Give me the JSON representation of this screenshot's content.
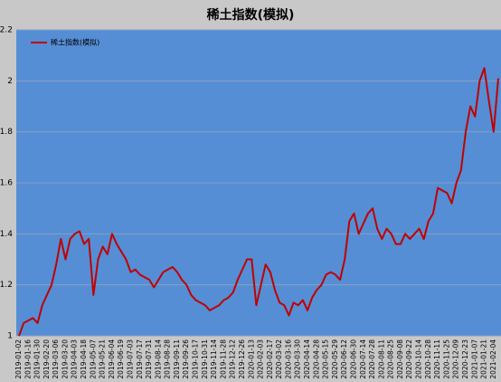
{
  "chart_data": {
    "type": "line",
    "title": "稀土指数(模拟)",
    "categories": [
      "2019-01-02",
      null,
      "2019-01-16",
      null,
      "2019-01-30",
      null,
      "2019-02-20",
      null,
      "2019-03-06",
      null,
      "2019-03-20",
      null,
      "2019-04-03",
      null,
      "2019-04-18",
      null,
      "2019-05-07",
      null,
      "2019-05-21",
      null,
      "2019-06-04",
      null,
      "2019-06-19",
      null,
      "2019-07-03",
      null,
      "2019-07-17",
      null,
      "2019-07-31",
      null,
      "2019-08-14",
      null,
      "2019-08-28",
      null,
      "2019-09-11",
      null,
      "2019-09-26",
      null,
      "2019-10-17",
      null,
      "2019-10-31",
      null,
      "2019-11-14",
      null,
      "2019-11-28",
      null,
      "2019-12-12",
      null,
      "2019-12-26",
      null,
      "2020-01-13",
      null,
      "2020-02-03",
      null,
      "2020-02-17",
      null,
      "2020-03-02",
      null,
      "2020-03-16",
      null,
      "2020-03-30",
      null,
      "2020-04-14",
      null,
      "2020-04-28",
      null,
      "2020-05-15",
      null,
      "2020-05-29",
      null,
      "2020-06-12",
      null,
      "2020-06-30",
      null,
      "2020-07-14",
      null,
      "2020-07-28",
      null,
      "2020-08-11",
      null,
      "2020-08-25",
      null,
      "2020-09-08",
      null,
      "2020-09-22",
      null,
      "2020-10-14",
      null,
      "2020-10-28",
      null,
      "2020-11-11",
      null,
      "2020-11-25",
      null,
      "2020-12-09",
      null,
      "2020-12-23",
      null,
      "2021-01-07",
      null,
      "2021-01-21",
      null,
      "2021-02-04",
      null
    ],
    "series": [
      {
        "name": "稀土指数(模拟)",
        "color": "#c00000",
        "values": [
          1.0,
          1.05,
          1.06,
          1.07,
          1.05,
          1.12,
          1.16,
          1.2,
          1.28,
          1.38,
          1.3,
          1.38,
          1.4,
          1.41,
          1.36,
          1.38,
          1.16,
          1.3,
          1.35,
          1.32,
          1.4,
          1.36,
          1.33,
          1.3,
          1.25,
          1.26,
          1.24,
          1.23,
          1.22,
          1.19,
          1.22,
          1.25,
          1.26,
          1.27,
          1.25,
          1.22,
          1.2,
          1.16,
          1.14,
          1.13,
          1.12,
          1.1,
          1.11,
          1.12,
          1.14,
          1.15,
          1.17,
          1.22,
          1.26,
          1.3,
          1.3,
          1.12,
          1.2,
          1.28,
          1.25,
          1.18,
          1.13,
          1.12,
          1.08,
          1.13,
          1.12,
          1.14,
          1.1,
          1.15,
          1.18,
          1.2,
          1.24,
          1.25,
          1.24,
          1.22,
          1.3,
          1.45,
          1.48,
          1.4,
          1.44,
          1.48,
          1.5,
          1.42,
          1.38,
          1.42,
          1.4,
          1.36,
          1.36,
          1.4,
          1.38,
          1.4,
          1.42,
          1.38,
          1.45,
          1.48,
          1.58,
          1.57,
          1.56,
          1.52,
          1.6,
          1.65,
          1.8,
          1.9,
          1.86,
          2.0,
          2.05,
          1.92,
          1.8,
          2.01
        ]
      }
    ],
    "ylim": [
      1,
      2.2
    ],
    "yticks": [
      1,
      1.2,
      1.4,
      1.6,
      1.8,
      2,
      2.2
    ],
    "grid": true,
    "legend": "top-left"
  }
}
